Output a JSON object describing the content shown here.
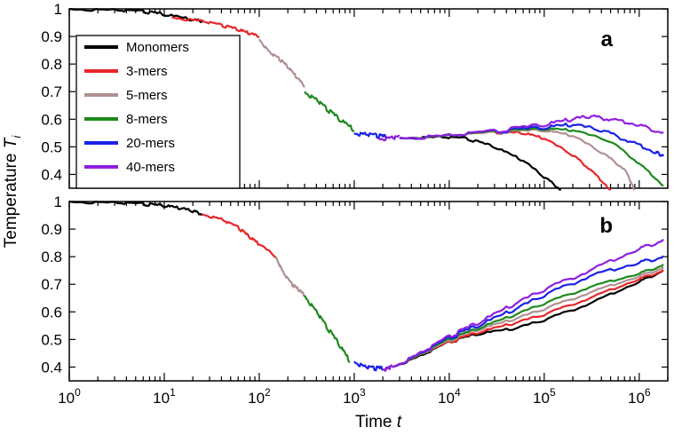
{
  "chart_data": [
    {
      "panel": "a",
      "type": "line",
      "xscale": "log",
      "xlim": [
        1,
        2000000
      ],
      "ylim": [
        0.35,
        1.0
      ],
      "yticks": [
        1,
        0.9,
        0.8,
        0.7,
        0.6,
        0.5,
        0.4
      ],
      "ytick_labels": [
        "1",
        "0.9",
        "0.8",
        "0.7",
        "0.6",
        "0.5",
        "0.4"
      ],
      "legend_position": "top-left",
      "series": [
        {
          "name": "Monomers",
          "color": "#000000",
          "x": [
            1,
            3,
            6,
            10,
            20,
            25
          ],
          "y": [
            1.0,
            0.995,
            0.99,
            0.98,
            0.96,
            0.955
          ],
          "tail_x": [
            3000,
            8000,
            15000,
            30000,
            60000,
            100000,
            150000
          ],
          "tail_y": [
            0.532,
            0.535,
            0.53,
            0.5,
            0.45,
            0.39,
            0.345
          ]
        },
        {
          "name": "3-mers",
          "color": "#e8262a",
          "x": [
            12,
            25,
            40,
            60,
            80,
            100
          ],
          "y": [
            0.97,
            0.955,
            0.94,
            0.925,
            0.91,
            0.9
          ],
          "tail_x": [
            3000,
            10000,
            30000,
            60000,
            100000,
            200000,
            300000,
            500000
          ],
          "tail_y": [
            0.532,
            0.54,
            0.552,
            0.55,
            0.53,
            0.47,
            0.42,
            0.345
          ]
        },
        {
          "name": "5-mers",
          "color": "#b09090",
          "x": [
            100,
            130,
            160,
            200,
            250,
            300
          ],
          "y": [
            0.89,
            0.84,
            0.82,
            0.79,
            0.75,
            0.72
          ],
          "tail_x": [
            3000,
            10000,
            30000,
            100000,
            200000,
            400000,
            700000,
            900000
          ],
          "tail_y": [
            0.532,
            0.54,
            0.553,
            0.56,
            0.54,
            0.48,
            0.42,
            0.345
          ]
        },
        {
          "name": "8-mers",
          "color": "#1d8a1d",
          "x": [
            300,
            400,
            500,
            700,
            1000
          ],
          "y": [
            0.7,
            0.67,
            0.64,
            0.6,
            0.56
          ],
          "tail_x": [
            3000,
            10000,
            30000,
            100000,
            200000,
            500000,
            1000000,
            1800000
          ],
          "tail_y": [
            0.532,
            0.54,
            0.554,
            0.565,
            0.56,
            0.52,
            0.44,
            0.36
          ]
        },
        {
          "name": "20-mers",
          "color": "#1a22e6",
          "x": [
            1000,
            1300,
            1700,
            2200
          ],
          "y": [
            0.55,
            0.545,
            0.54,
            0.535
          ],
          "tail_x": [
            3000,
            10000,
            30000,
            100000,
            200000,
            400000,
            800000,
            1500000,
            1800000
          ],
          "tail_y": [
            0.532,
            0.54,
            0.555,
            0.57,
            0.58,
            0.56,
            0.52,
            0.48,
            0.47
          ]
        },
        {
          "name": "40-mers",
          "color": "#8f1fe0",
          "x": [
            1800,
            2500,
            3000
          ],
          "y": [
            0.53,
            0.532,
            0.533
          ],
          "tail_x": [
            3000,
            10000,
            30000,
            100000,
            200000,
            300000,
            500000,
            1000000,
            1800000
          ],
          "tail_y": [
            0.533,
            0.54,
            0.556,
            0.58,
            0.6,
            0.61,
            0.6,
            0.58,
            0.55
          ]
        }
      ]
    },
    {
      "panel": "b",
      "type": "line",
      "xscale": "log",
      "xlim": [
        1,
        2000000
      ],
      "ylim": [
        0.35,
        1.0
      ],
      "yticks": [
        1,
        0.9,
        0.8,
        0.7,
        0.6,
        0.5,
        0.4
      ],
      "ytick_labels": [
        "1",
        "0.9",
        "0.8",
        "0.7",
        "0.6",
        "0.5",
        "0.4"
      ],
      "series": [
        {
          "name": "Monomers",
          "color": "#000000",
          "x": [
            1,
            3,
            6,
            10,
            15,
            20,
            25
          ],
          "y": [
            1.0,
            0.995,
            0.99,
            0.985,
            0.975,
            0.965,
            0.955
          ],
          "tail_x": [
            2500,
            5000,
            10000,
            20000,
            50000,
            100000,
            300000,
            1000000,
            1800000
          ],
          "tail_y": [
            0.4,
            0.44,
            0.49,
            0.52,
            0.54,
            0.57,
            0.63,
            0.71,
            0.75
          ]
        },
        {
          "name": "3-mers",
          "color": "#e8262a",
          "x": [
            25,
            40,
            60,
            80,
            100,
            150
          ],
          "y": [
            0.955,
            0.935,
            0.905,
            0.87,
            0.845,
            0.8
          ],
          "tail_x": [
            2500,
            5000,
            10000,
            20000,
            50000,
            100000,
            300000,
            1000000,
            1800000
          ],
          "tail_y": [
            0.4,
            0.445,
            0.49,
            0.525,
            0.56,
            0.59,
            0.65,
            0.72,
            0.75
          ]
        },
        {
          "name": "5-mers",
          "color": "#b09090",
          "x": [
            150,
            180,
            220,
            260,
            300
          ],
          "y": [
            0.8,
            0.74,
            0.7,
            0.68,
            0.66
          ],
          "tail_x": [
            2500,
            5000,
            10000,
            20000,
            50000,
            100000,
            300000,
            1000000,
            1800000
          ],
          "tail_y": [
            0.4,
            0.445,
            0.495,
            0.535,
            0.575,
            0.61,
            0.67,
            0.73,
            0.76
          ]
        },
        {
          "name": "8-mers",
          "color": "#1d8a1d",
          "x": [
            300,
            400,
            500,
            700,
            900
          ],
          "y": [
            0.66,
            0.6,
            0.55,
            0.48,
            0.42
          ],
          "tail_x": [
            2500,
            5000,
            10000,
            20000,
            50000,
            100000,
            300000,
            1000000,
            1800000
          ],
          "tail_y": [
            0.4,
            0.447,
            0.5,
            0.54,
            0.59,
            0.63,
            0.69,
            0.74,
            0.77
          ]
        },
        {
          "name": "20-mers",
          "color": "#1a22e6",
          "x": [
            1000,
            1300,
            1600,
            2000
          ],
          "y": [
            0.42,
            0.4,
            0.395,
            0.395
          ],
          "tail_x": [
            2500,
            5000,
            10000,
            20000,
            50000,
            100000,
            300000,
            1000000,
            1800000
          ],
          "tail_y": [
            0.4,
            0.448,
            0.505,
            0.55,
            0.61,
            0.66,
            0.73,
            0.78,
            0.8
          ]
        },
        {
          "name": "40-mers",
          "color": "#8f1fe0",
          "x": [
            2000,
            2300,
            2500
          ],
          "y": [
            0.393,
            0.395,
            0.4
          ],
          "tail_x": [
            2500,
            5000,
            10000,
            20000,
            50000,
            100000,
            300000,
            1000000,
            1800000
          ],
          "tail_y": [
            0.4,
            0.45,
            0.51,
            0.56,
            0.63,
            0.68,
            0.75,
            0.83,
            0.86
          ]
        }
      ]
    }
  ],
  "axes": {
    "xlabel_text": "Time",
    "xlabel_var": "t",
    "ylabel_text": "Temperature",
    "ylabel_var": "T",
    "ylabel_sub": "i",
    "xtick_base": "10",
    "xtick_exponents": [
      "0",
      "1",
      "2",
      "3",
      "4",
      "5",
      "6"
    ],
    "panel_labels": [
      "a",
      "b"
    ]
  }
}
